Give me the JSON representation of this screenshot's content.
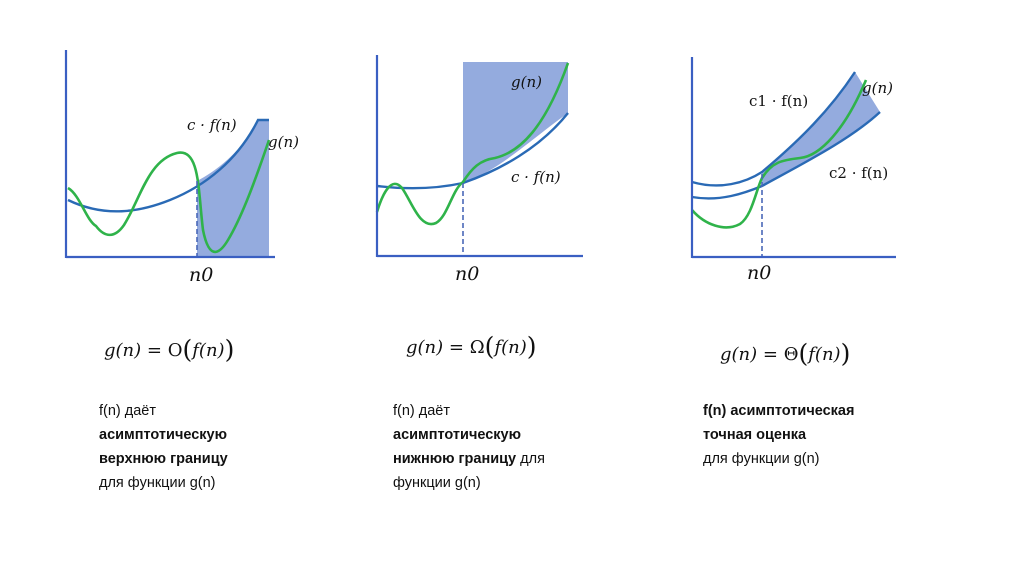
{
  "colors": {
    "axis": "#3a5fc2",
    "f_curve": "#2a6ab5",
    "g_curve": "#2fb34a",
    "shade": "#8ea6dc",
    "dashed": "#4a68b8"
  },
  "panels": [
    {
      "id": "big-o",
      "labels": {
        "upper": "c · f(n)",
        "g": "g(n)",
        "n0": "n0"
      },
      "formula": {
        "lhs": "g(n)",
        "op": "=",
        "symbol": "O",
        "arg": "f(n)"
      },
      "description": [
        {
          "text": "f(n) даёт",
          "bold": false
        },
        {
          "text": "асимптотическую",
          "bold": true
        },
        {
          "text": "верхнюю границу",
          "bold": true
        },
        {
          "text": "для функции g(n)",
          "bold": false
        }
      ]
    },
    {
      "id": "big-omega",
      "labels": {
        "lower": "c · f(n)",
        "g": "g(n)",
        "n0": "n0"
      },
      "formula": {
        "lhs": "g(n)",
        "op": "=",
        "symbol": "Ω",
        "arg": "f(n)"
      },
      "description": [
        {
          "text": "f(n) даёт",
          "bold": false
        },
        {
          "text": "асимптотическую",
          "bold": true
        },
        {
          "text": "нижнюю границу",
          "bold": true,
          "suffix": " для"
        },
        {
          "text": "функции g(n)",
          "bold": false
        }
      ]
    },
    {
      "id": "big-theta",
      "labels": {
        "upper": "c1 · f(n)",
        "lower": "c2 · f(n)",
        "g": "g(n)",
        "n0": "n0"
      },
      "formula": {
        "lhs": "g(n)",
        "op": "=",
        "symbol": "Θ",
        "arg": "f(n)"
      },
      "description": [
        {
          "text": "f(n) асимптотическая",
          "bold": true
        },
        {
          "text": "точная оценка",
          "bold": true
        },
        {
          "text": "для функции g(n)",
          "bold": false
        }
      ]
    }
  ]
}
